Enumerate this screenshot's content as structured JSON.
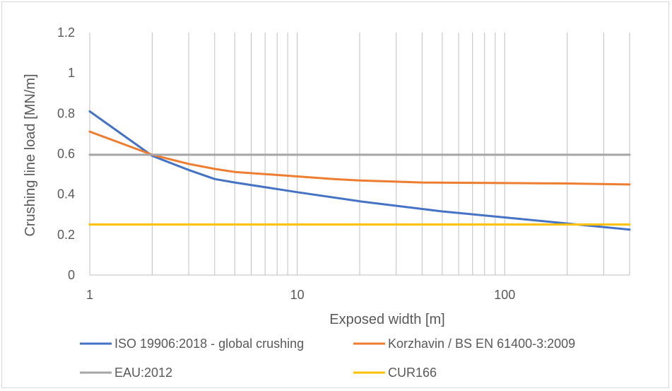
{
  "chart_data": {
    "type": "line",
    "title": "",
    "xlabel": "Exposed width [m]",
    "ylabel": "Crushing line load [MN/m]",
    "xscale": "log",
    "xlim": [
      1,
      400
    ],
    "ylim": [
      0,
      1.2
    ],
    "x_ticks": [
      1,
      10,
      100
    ],
    "x_tick_labels": [
      "1",
      "10",
      "100"
    ],
    "y_ticks": [
      0,
      0.2,
      0.4,
      0.6,
      0.8,
      1.0,
      1.2
    ],
    "y_tick_labels": [
      "0",
      "0.2",
      "0.4",
      "0.6",
      "0.8",
      "1",
      "1.2"
    ],
    "grid": "vertical",
    "legend_position": "bottom",
    "series": [
      {
        "name": "ISO 19906:2018 - global crushing",
        "color": "#4472c4",
        "x": [
          1,
          2,
          3,
          4,
          5,
          10,
          20,
          50,
          100,
          200,
          400
        ],
        "y": [
          0.81,
          0.59,
          0.52,
          0.475,
          0.458,
          0.41,
          0.365,
          0.315,
          0.285,
          0.255,
          0.225
        ]
      },
      {
        "name": "Korzhavin / BS EN 61400-3:2009",
        "color": "#ed7d31",
        "x": [
          1,
          2,
          3,
          4,
          5,
          10,
          15,
          20,
          40,
          100,
          200,
          400
        ],
        "y": [
          0.71,
          0.595,
          0.55,
          0.525,
          0.51,
          0.488,
          0.475,
          0.468,
          0.458,
          0.455,
          0.453,
          0.448
        ]
      },
      {
        "name": "EAU:2012",
        "color": "#a5a5a5",
        "x": [
          1,
          400
        ],
        "y": [
          0.595,
          0.595
        ]
      },
      {
        "name": "CUR166",
        "color": "#ffc000",
        "x": [
          1,
          400
        ],
        "y": [
          0.25,
          0.25
        ]
      }
    ]
  }
}
